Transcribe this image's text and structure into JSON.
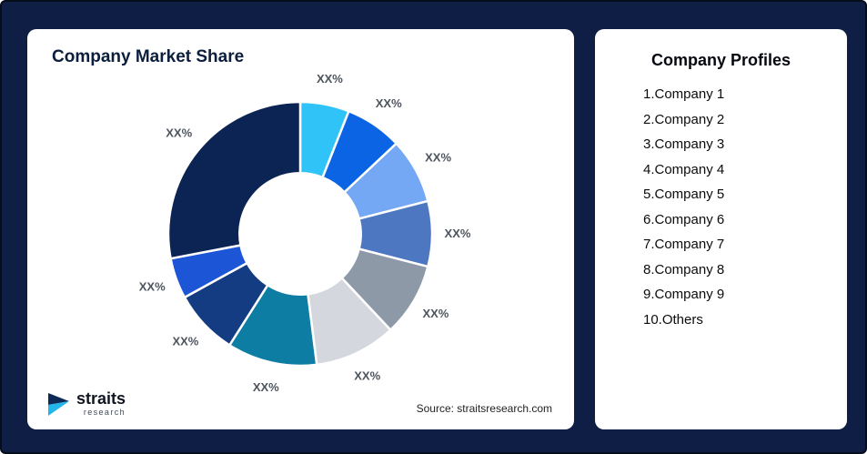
{
  "page": {
    "background": "#0e1e44"
  },
  "market_share_card": {
    "title": "Company Market Share",
    "source": "Source: straitsresearch.com",
    "logo": {
      "primary": "straits",
      "secondary": "research"
    }
  },
  "profiles_card": {
    "title": "Company Profiles",
    "items": [
      "1.Company 1",
      "2.Company 2",
      "3.Company 3",
      "4.Company 4",
      "5.Company 5",
      "6.Company 6",
      "7.Company 7",
      "8.Company 8",
      "9.Company 9",
      "10.Others"
    ]
  },
  "chart_data": {
    "type": "pie",
    "variant": "donut",
    "title": "Company Market Share",
    "legend": "none",
    "inner_radius_ratio": 0.46,
    "label_color": "#4d545e",
    "segments": [
      {
        "label": "XX%",
        "value": 6,
        "color": "#2fc3f7"
      },
      {
        "label": "XX%",
        "value": 7,
        "color": "#0b64e4"
      },
      {
        "label": "XX%",
        "value": 8,
        "color": "#74a7f4"
      },
      {
        "label": "XX%",
        "value": 8,
        "color": "#4e77c2"
      },
      {
        "label": "XX%",
        "value": 9,
        "color": "#8e99a8"
      },
      {
        "label": "XX%",
        "value": 10,
        "color": "#d4d8de"
      },
      {
        "label": "XX%",
        "value": 11,
        "color": "#0d7da4"
      },
      {
        "label": "XX%",
        "value": 8,
        "color": "#133c83"
      },
      {
        "label": "XX%",
        "value": 5,
        "color": "#1c55d6"
      },
      {
        "label": "XX%",
        "value": 28,
        "color": "#0b2453"
      }
    ]
  }
}
